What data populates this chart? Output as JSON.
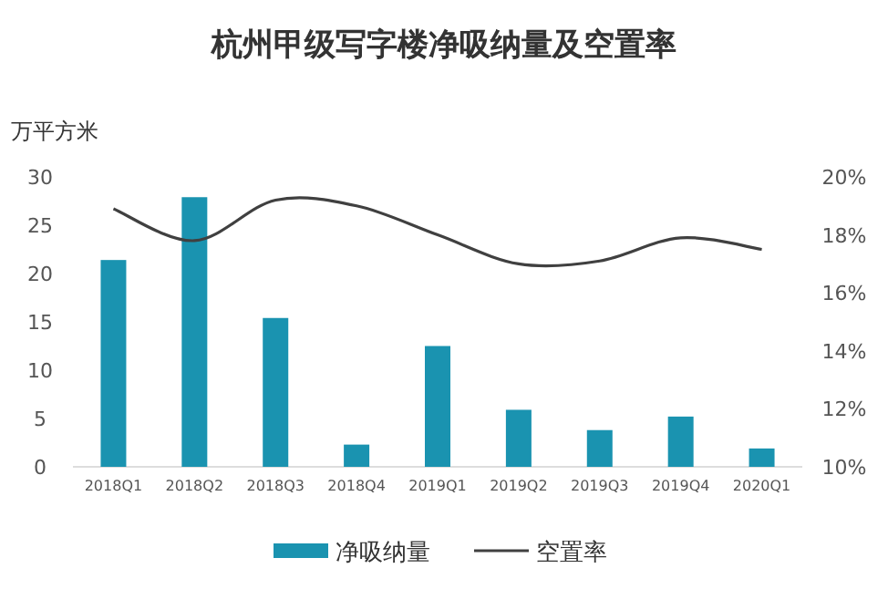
{
  "chart_data": {
    "type": "bar",
    "title": "杭州甲级写字楼净吸纳量及空置率",
    "ylabel": "万平方米",
    "categories": [
      "2018Q1",
      "2018Q2",
      "2018Q3",
      "2018Q4",
      "2019Q1",
      "2019Q2",
      "2019Q3",
      "2019Q4",
      "2020Q1"
    ],
    "series": [
      {
        "name": "净吸纳量",
        "color": "#1a93b0",
        "values": [
          21.4,
          27.9,
          15.4,
          2.3,
          12.5,
          5.9,
          3.8,
          5.2,
          1.9
        ]
      },
      {
        "name": "空置率",
        "type": "line",
        "axis": "y2",
        "color": "#404040",
        "values": [
          18.9,
          17.8,
          19.2,
          19.0,
          18.0,
          17.0,
          17.1,
          17.9,
          17.5
        ]
      }
    ],
    "ylim": [
      0,
      30
    ],
    "yticks": [
      0,
      5,
      10,
      15,
      20,
      25,
      30
    ],
    "y2lim": [
      10,
      20
    ],
    "y2ticks": [
      {
        "value": 10,
        "label": "10%"
      },
      {
        "value": 12,
        "label": "12%"
      },
      {
        "value": 14,
        "label": "14%"
      },
      {
        "value": 16,
        "label": "16%"
      },
      {
        "value": 18,
        "label": "18%"
      },
      {
        "value": 20,
        "label": "20%"
      }
    ],
    "legend": "bottom"
  }
}
